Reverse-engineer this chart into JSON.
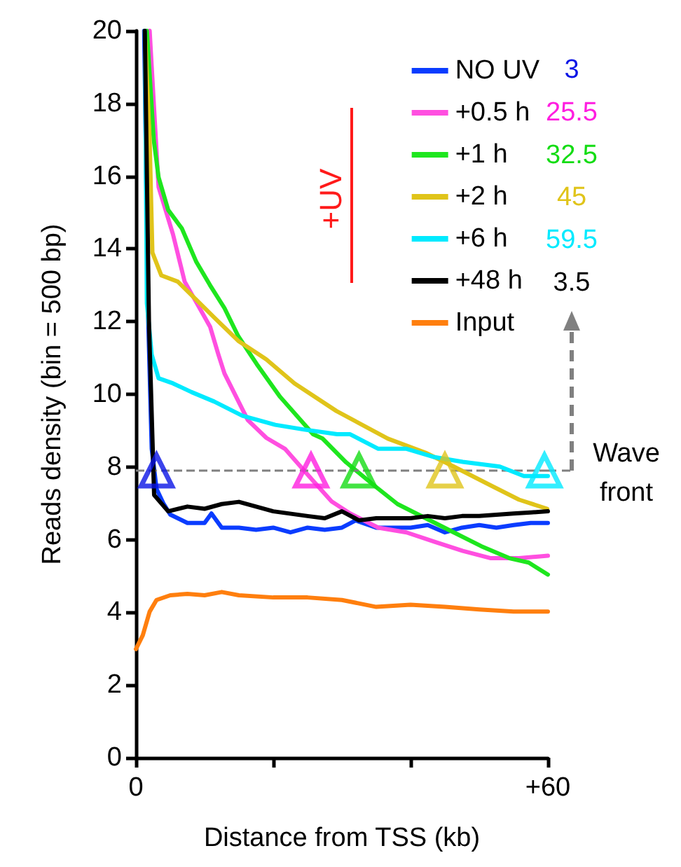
{
  "chart_data": {
    "type": "line",
    "xlabel": "Distance from TSS (kb)",
    "ylabel": "Reads density (bin = 500 bp)",
    "xlim": [
      0,
      60
    ],
    "xticks": [
      0,
      {
        "value": 20,
        "label": null
      },
      {
        "value": 40,
        "label": null
      },
      {
        "value": 60,
        "label": "+60"
      }
    ],
    "ylim": [
      0,
      20
    ],
    "yticks": [
      0,
      2,
      4,
      6,
      8,
      10,
      12,
      14,
      16,
      18,
      20
    ],
    "grid": false,
    "legend": "top right",
    "marker": "none",
    "line_style": "solid",
    "series": [
      {
        "name": "NO UV",
        "color": "#0a3cff",
        "x": [
          1.2,
          1.8,
          2.3,
          3,
          4,
          5,
          7.5,
          10,
          11,
          12.5,
          15,
          17.5,
          20,
          22.5,
          25,
          27.5,
          30,
          32,
          35,
          37.5,
          40,
          42.5,
          45,
          47.5,
          50,
          52.5,
          55,
          57.5,
          60
        ],
        "values": [
          20,
          12,
          8.5,
          7.4,
          7.0,
          6.69,
          6.46,
          6.46,
          6.72,
          6.33,
          6.33,
          6.27,
          6.33,
          6.2,
          6.33,
          6.27,
          6.33,
          6.53,
          6.33,
          6.33,
          6.33,
          6.4,
          6.2,
          6.33,
          6.4,
          6.33,
          6.4,
          6.46,
          6.46
        ]
      },
      {
        "name": "+0.5 h",
        "color": "#ff4fe0",
        "x": [
          2,
          3.3,
          5.4,
          7.1,
          10.8,
          12,
          12.9,
          16.3,
          19,
          21.7,
          25.8,
          28.5,
          31.2,
          35.3,
          39.4,
          43.5,
          47.6,
          51.7,
          55.8,
          60
        ],
        "values": [
          20,
          15.7,
          14.4,
          13.1,
          11.86,
          11.1,
          10.57,
          9.29,
          8.8,
          8.5,
          7.62,
          7.05,
          6.72,
          6.33,
          6.2,
          5.94,
          5.69,
          5.49,
          5.49,
          5.56
        ]
      },
      {
        "name": "+1 h",
        "color": "#1ee61e",
        "x": [
          1.6,
          2.6,
          3.3,
          4.7,
          6.7,
          8.8,
          10.8,
          12.9,
          14.9,
          17.6,
          21,
          25.8,
          27.2,
          30.6,
          34.7,
          38.1,
          42.2,
          46.3,
          50.3,
          54.4,
          57.2,
          60
        ],
        "values": [
          20,
          17.0,
          15.97,
          15.07,
          14.56,
          13.64,
          13.0,
          12.37,
          11.6,
          10.83,
          9.93,
          8.9,
          8.78,
          8.13,
          7.49,
          6.98,
          6.59,
          6.2,
          5.82,
          5.49,
          5.37,
          5.04
        ]
      },
      {
        "name": "+2 h",
        "color": "#e0c41a",
        "x": [
          1.3,
          2.0,
          2.4,
          3.7,
          6.1,
          8.8,
          11.4,
          14.9,
          19,
          23.1,
          29.2,
          36.7,
          42.2,
          46.3,
          51.7,
          55.8,
          59.9
        ],
        "values": [
          20,
          17.0,
          13.9,
          13.27,
          13.1,
          12.6,
          12.11,
          11.47,
          10.96,
          10.3,
          9.54,
          8.78,
          8.39,
          8.01,
          7.49,
          7.1,
          6.85
        ]
      },
      {
        "name": "+6 h",
        "color": "#00eaff",
        "x": [
          1.3,
          1.6,
          2.3,
          3.3,
          5.4,
          8.1,
          11.4,
          15.5,
          20.3,
          24.5,
          29.3,
          31.2,
          35.3,
          39.4,
          43.5,
          47.6,
          53,
          56.5,
          60
        ],
        "values": [
          20,
          12.5,
          11.09,
          10.44,
          10.3,
          10.06,
          9.8,
          9.41,
          9.16,
          9.03,
          8.9,
          8.9,
          8.5,
          8.5,
          8.27,
          8.14,
          8.01,
          7.75,
          7.75
        ]
      },
      {
        "name": "+48 h",
        "color": "#000000",
        "x": [
          1.3,
          1.9,
          2.65,
          4.7,
          7.5,
          10,
          12.5,
          15,
          20,
          25,
          27.5,
          30,
          32.5,
          35,
          40,
          42.5,
          45,
          47.5,
          50,
          55,
          57.5,
          60
        ],
        "values": [
          20,
          12,
          7.23,
          6.78,
          6.91,
          6.85,
          6.98,
          7.04,
          6.78,
          6.65,
          6.59,
          6.78,
          6.53,
          6.59,
          6.59,
          6.65,
          6.59,
          6.65,
          6.65,
          6.72,
          6.75,
          6.78
        ]
      },
      {
        "name": "Input",
        "color": "#ff7f0e",
        "x": [
          0,
          1,
          2,
          3,
          5,
          7.5,
          10,
          12.5,
          15,
          20,
          25,
          30,
          35,
          40,
          45,
          50,
          55,
          60
        ],
        "values": [
          2.99,
          3.37,
          4.02,
          4.34,
          4.47,
          4.51,
          4.47,
          4.56,
          4.47,
          4.41,
          4.41,
          4.34,
          4.15,
          4.21,
          4.15,
          4.08,
          4.02,
          4.02
        ]
      },
      {
        "type": "scatter",
        "marker": "triangle",
        "x": [
          3,
          25.5,
          32.5,
          45,
          59.5
        ],
        "values": [
          7.9,
          7.9,
          7.9,
          7.9,
          7.9
        ],
        "colors": [
          "#0a14e6",
          "#ff1ee0",
          "#14dc14",
          "#e0c41a",
          "#00eaff"
        ]
      }
    ],
    "ref_lines": [
      {
        "axis": "y",
        "value": 7.9,
        "color": "#808080",
        "line_style": "dashed"
      }
    ],
    "annotations": [
      "3",
      "25.5",
      "32.5",
      "45",
      "59.5",
      "3.5",
      "+UV",
      "Wave front"
    ]
  }
}
